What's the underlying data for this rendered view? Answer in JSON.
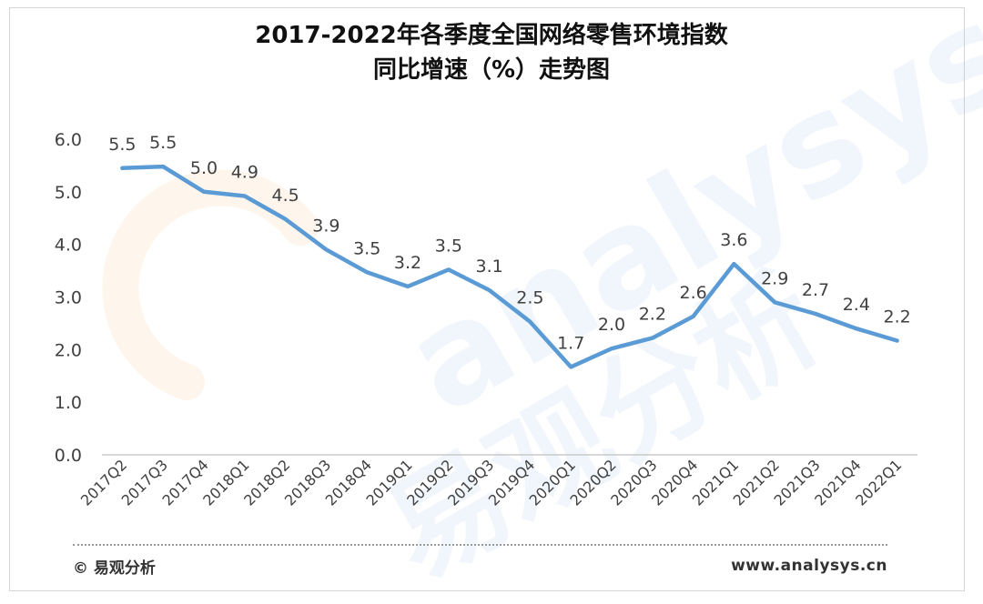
{
  "chart_data": {
    "type": "line",
    "title_line1": "2017-2022年各季度全国网络零售环境指数",
    "title_line2": "同比增速（%）走势图",
    "categories": [
      "2017Q2",
      "2017Q3",
      "2017Q4",
      "2018Q1",
      "2018Q2",
      "2018Q3",
      "2018Q4",
      "2019Q1",
      "2019Q2",
      "2019Q3",
      "2019Q4",
      "2020Q1",
      "2020Q2",
      "2020Q3",
      "2020Q4",
      "2021Q1",
      "2021Q2",
      "2021Q3",
      "2021Q4",
      "2022Q1"
    ],
    "values": [
      5.45,
      5.48,
      5.0,
      4.92,
      4.48,
      3.9,
      3.47,
      3.2,
      3.52,
      3.13,
      2.53,
      1.67,
      2.02,
      2.22,
      2.63,
      3.63,
      2.9,
      2.68,
      2.4,
      2.17
    ],
    "data_labels": [
      "5.5",
      "5.5",
      "5.0",
      "4.9",
      "4.5",
      "3.9",
      "3.5",
      "3.2",
      "3.5",
      "3.1",
      "2.5",
      "1.7",
      "2.0",
      "2.2",
      "2.6",
      "3.6",
      "2.9",
      "2.7",
      "2.4",
      "2.2"
    ],
    "y_ticks": [
      "0.0",
      "1.0",
      "2.0",
      "3.0",
      "4.0",
      "5.0",
      "6.0"
    ],
    "ylim": [
      0,
      6
    ],
    "line_color": "#5b9bd5",
    "grid": false,
    "legend": "none"
  },
  "watermark": {
    "text_latin": "analysys",
    "text_cn": "易观分析"
  },
  "footer": {
    "source": "© 易观分析",
    "url": "www.analysys.cn"
  }
}
